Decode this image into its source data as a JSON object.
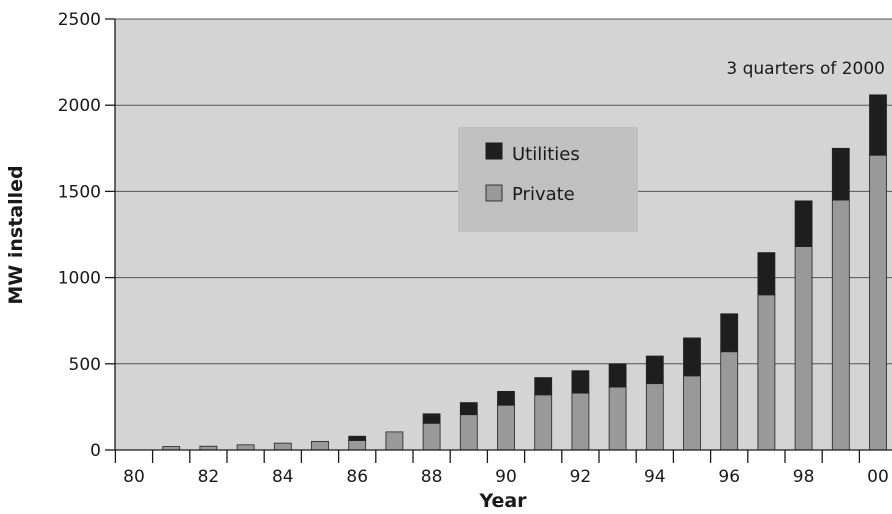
{
  "chart_data": {
    "type": "bar",
    "stacked": true,
    "xlabel": "Year",
    "ylabel": "MW installed",
    "ylim": [
      0,
      2500
    ],
    "yticks": [
      0,
      500,
      1000,
      1500,
      2000,
      2500
    ],
    "grid": "horizontal",
    "legend_position": "center-top",
    "plot_background": "#d4d4d4",
    "categories": [
      "80",
      "81",
      "82",
      "83",
      "84",
      "85",
      "86",
      "87",
      "88",
      "89",
      "90",
      "91",
      "92",
      "93",
      "94",
      "95",
      "96",
      "97",
      "98",
      "99",
      "00"
    ],
    "x_tick_labels": [
      "80",
      "82",
      "84",
      "86",
      "88",
      "90",
      "92",
      "94",
      "96",
      "98",
      "00"
    ],
    "series": [
      {
        "name": "Private",
        "color": "#999999",
        "values": [
          0,
          20,
          22,
          30,
          40,
          50,
          55,
          105,
          155,
          205,
          260,
          320,
          330,
          365,
          385,
          430,
          570,
          900,
          1180,
          1450,
          1710
        ]
      },
      {
        "name": "Utilities",
        "color": "#1e1e1e",
        "values": [
          0,
          0,
          0,
          0,
          0,
          0,
          25,
          0,
          55,
          70,
          80,
          100,
          130,
          135,
          160,
          220,
          220,
          245,
          265,
          300,
          350
        ]
      }
    ],
    "annotation": "3 quarters of 2000"
  }
}
